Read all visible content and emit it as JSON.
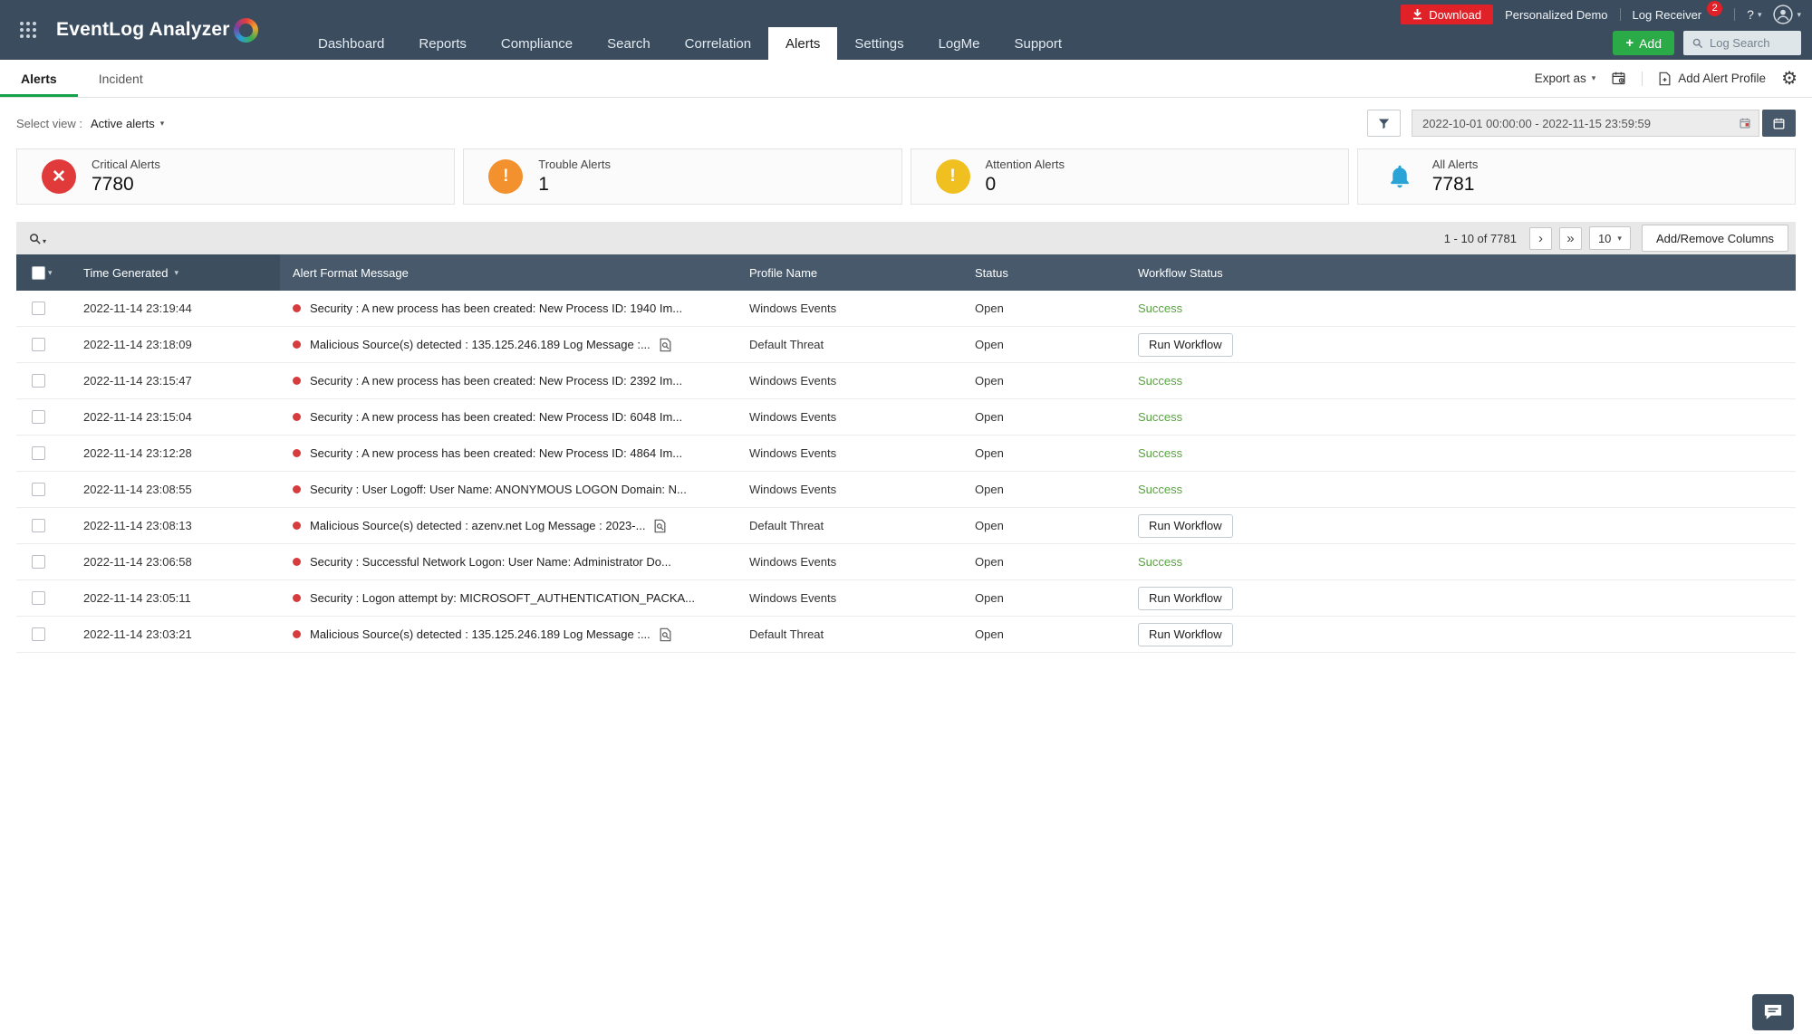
{
  "colors": {
    "header_bg": "#3a4c5e",
    "accent_green": "#2bab47",
    "tab_underline_green": "#15a24b",
    "download_red": "#e02127",
    "critical_red": "#e03a3a",
    "trouble_orange": "#f2912d",
    "attention_yellow": "#f0c020",
    "all_alerts_blue": "#2aa4d6",
    "success_green": "#57a33e",
    "table_header_bg": "#47596b"
  },
  "header": {
    "logo_text": "EventLog Analyzer",
    "nav_items": [
      {
        "label": "Dashboard",
        "active": false
      },
      {
        "label": "Reports",
        "active": false
      },
      {
        "label": "Compliance",
        "active": false
      },
      {
        "label": "Search",
        "active": false
      },
      {
        "label": "Correlation",
        "active": false
      },
      {
        "label": "Alerts",
        "active": true
      },
      {
        "label": "Settings",
        "active": false
      },
      {
        "label": "LogMe",
        "active": false
      },
      {
        "label": "Support",
        "active": false
      }
    ],
    "download_label": "Download",
    "personalized_demo_label": "Personalized Demo",
    "log_receiver_label": "Log Receiver",
    "notification_count": "2",
    "help_label": "?",
    "add_button_label": "Add",
    "log_search_label": "Log Search"
  },
  "subheader": {
    "tabs": [
      {
        "label": "Alerts",
        "active": true
      },
      {
        "label": "Incident",
        "active": false
      }
    ],
    "export_as_label": "Export as",
    "add_alert_profile_label": "Add Alert Profile"
  },
  "filter_bar": {
    "select_view_label": "Select view :",
    "selected_view": "Active alerts",
    "date_range": "2022-10-01 00:00:00 - 2022-11-15 23:59:59"
  },
  "summary_cards": [
    {
      "label": "Critical Alerts",
      "value": "7780",
      "icon": "critical-cross-icon",
      "color": "#e03a3a"
    },
    {
      "label": "Trouble Alerts",
      "value": "1",
      "icon": "trouble-exclaim-icon",
      "color": "#f2912d"
    },
    {
      "label": "Attention Alerts",
      "value": "0",
      "icon": "attention-exclaim-icon",
      "color": "#f0c020"
    },
    {
      "label": "All Alerts",
      "value": "7781",
      "icon": "bell-icon",
      "color": "#2aa4d6"
    }
  ],
  "table_toolbar": {
    "pagination_text": "1 - 10 of 7781",
    "next_page": "›",
    "last_page": "»",
    "page_size": "10",
    "add_remove_columns_label": "Add/Remove Columns"
  },
  "table": {
    "columns": [
      "Time Generated",
      "Alert Format Message",
      "Profile Name",
      "Status",
      "Workflow Status"
    ],
    "rows": [
      {
        "time": "2022-11-14 23:19:44",
        "message": "Security : A new process has been created: New Process ID: 1940 Im...",
        "has_lookup_icon": false,
        "profile": "Windows Events",
        "status": "Open",
        "workflow": "Success",
        "workflow_kind": "success"
      },
      {
        "time": "2022-11-14 23:18:09",
        "message": "Malicious Source(s) detected : 135.125.246.189 Log Message :...",
        "has_lookup_icon": true,
        "profile": "Default Threat",
        "status": "Open",
        "workflow": "Run Workflow",
        "workflow_kind": "button"
      },
      {
        "time": "2022-11-14 23:15:47",
        "message": "Security : A new process has been created: New Process ID: 2392 Im...",
        "has_lookup_icon": false,
        "profile": "Windows Events",
        "status": "Open",
        "workflow": "Success",
        "workflow_kind": "success"
      },
      {
        "time": "2022-11-14 23:15:04",
        "message": "Security : A new process has been created: New Process ID: 6048 Im...",
        "has_lookup_icon": false,
        "profile": "Windows Events",
        "status": "Open",
        "workflow": "Success",
        "workflow_kind": "success"
      },
      {
        "time": "2022-11-14 23:12:28",
        "message": "Security : A new process has been created: New Process ID: 4864 Im...",
        "has_lookup_icon": false,
        "profile": "Windows Events",
        "status": "Open",
        "workflow": "Success",
        "workflow_kind": "success"
      },
      {
        "time": "2022-11-14 23:08:55",
        "message": "Security : User Logoff: User Name: ANONYMOUS LOGON Domain: N...",
        "has_lookup_icon": false,
        "profile": "Windows Events",
        "status": "Open",
        "workflow": "Success",
        "workflow_kind": "success"
      },
      {
        "time": "2022-11-14 23:08:13",
        "message": "Malicious Source(s) detected : azenv.net Log Message : 2023-...",
        "has_lookup_icon": true,
        "profile": "Default Threat",
        "status": "Open",
        "workflow": "Run Workflow",
        "workflow_kind": "button"
      },
      {
        "time": "2022-11-14 23:06:58",
        "message": "Security : Successful Network Logon: User Name: Administrator Do...",
        "has_lookup_icon": false,
        "profile": "Windows Events",
        "status": "Open",
        "workflow": "Success",
        "workflow_kind": "success"
      },
      {
        "time": "2022-11-14 23:05:11",
        "message": "Security : Logon attempt by: MICROSOFT_AUTHENTICATION_PACKA...",
        "has_lookup_icon": false,
        "profile": "Windows Events",
        "status": "Open",
        "workflow": "Run Workflow",
        "workflow_kind": "button"
      },
      {
        "time": "2022-11-14 23:03:21",
        "message": "Malicious Source(s) detected : 135.125.246.189 Log Message :...",
        "has_lookup_icon": true,
        "profile": "Default Threat",
        "status": "Open",
        "workflow": "Run Workflow",
        "workflow_kind": "button"
      }
    ]
  }
}
